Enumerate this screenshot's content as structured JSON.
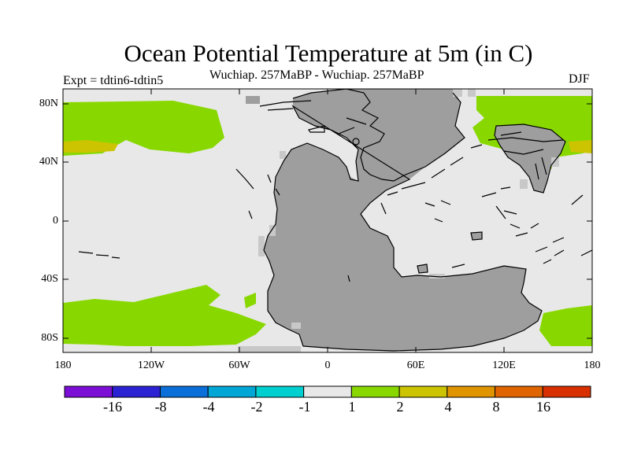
{
  "title": "Ocean Potential Temperature at 5m (in C)",
  "subtitle": "Wuchiap. 257MaBP - Wuchiap. 257MaBP",
  "experiment": "Expt = tdtin6-tdtin5",
  "season": "DJF",
  "axes": {
    "y_labels": [
      "80N",
      "40N",
      "0",
      "40S",
      "80S"
    ],
    "x_labels": [
      "180",
      "120W",
      "60W",
      "0",
      "60E",
      "120E",
      "180"
    ]
  },
  "colorbar": {
    "labels": [
      "-16",
      "-8",
      "-4",
      "-2",
      "-1",
      "1",
      "2",
      "4",
      "8",
      "16"
    ],
    "colors": [
      "#7b0fd6",
      "#2b22d4",
      "#0a6fd8",
      "#00a7d6",
      "#00cfcf",
      "#e8e8e8",
      "#88d800",
      "#ccc400",
      "#e09500",
      "#e06400",
      "#d83000"
    ]
  },
  "map_colors": {
    "background_anomaly": "#e8e8e8",
    "positive_anomaly_1_2": "#88d800",
    "positive_anomaly_2_4": "#ccc400",
    "land": "#9e9e9e",
    "coastline": "#000000"
  }
}
